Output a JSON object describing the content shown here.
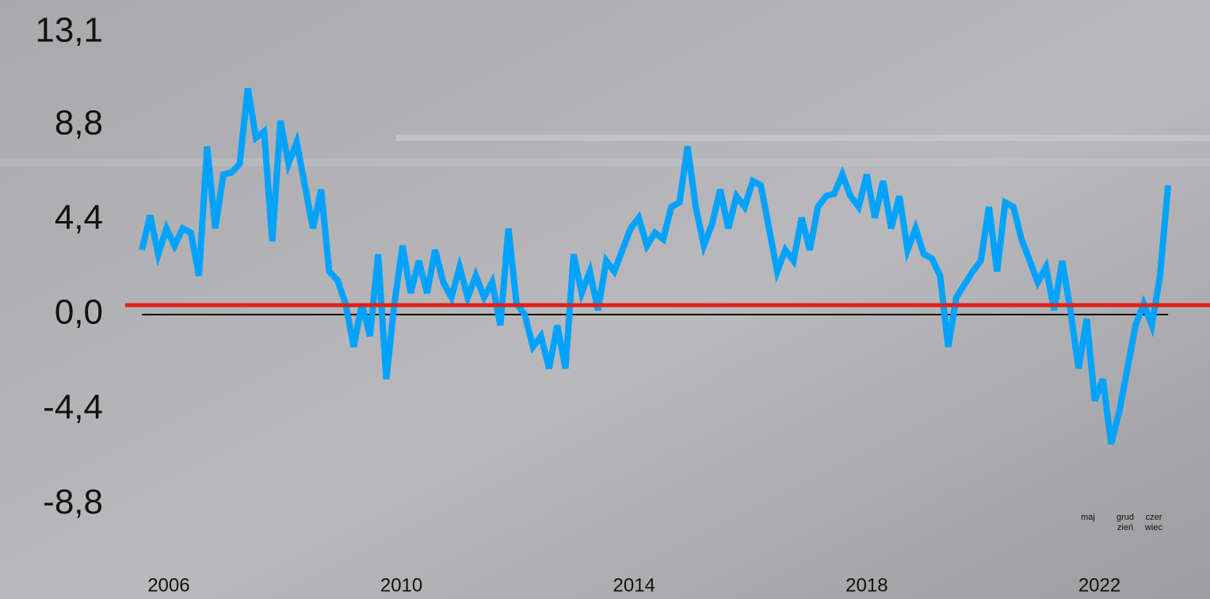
{
  "chart_data": {
    "type": "line",
    "x": [
      2005.54,
      2005.68,
      2005.82,
      2005.96,
      2006.1,
      2006.24,
      2006.38,
      2006.52,
      2006.66,
      2006.8,
      2006.94,
      2007.08,
      2007.22,
      2007.36,
      2007.5,
      2007.64,
      2007.78,
      2007.92,
      2008.06,
      2008.2,
      2008.34,
      2008.48,
      2008.62,
      2008.76,
      2008.9,
      2009.04,
      2009.18,
      2009.32,
      2009.46,
      2009.6,
      2009.74,
      2009.88,
      2010.02,
      2010.16,
      2010.3,
      2010.44,
      2010.58,
      2010.72,
      2010.86,
      2011.0,
      2011.14,
      2011.28,
      2011.42,
      2011.56,
      2011.7,
      2011.84,
      2011.98,
      2012.12,
      2012.26,
      2012.4,
      2012.54,
      2012.68,
      2012.82,
      2012.96,
      2013.1,
      2013.24,
      2013.38,
      2013.52,
      2013.66,
      2013.8,
      2013.94,
      2014.08,
      2014.22,
      2014.36,
      2014.5,
      2014.64,
      2014.78,
      2014.92,
      2015.06,
      2015.2,
      2015.34,
      2015.48,
      2015.62,
      2015.76,
      2015.9,
      2016.04,
      2016.18,
      2016.32,
      2016.46,
      2016.6,
      2016.74,
      2016.88,
      2017.02,
      2017.16,
      2017.3,
      2017.44,
      2017.58,
      2017.72,
      2017.86,
      2018.0,
      2018.14,
      2018.28,
      2018.42,
      2018.56,
      2018.7,
      2018.84,
      2018.98,
      2019.12,
      2019.26,
      2019.4,
      2019.54,
      2019.68,
      2019.82,
      2019.96,
      2020.1,
      2020.24,
      2020.38,
      2020.52,
      2020.66,
      2020.8,
      2020.94,
      2021.08,
      2021.22,
      2021.36,
      2021.5,
      2021.64,
      2021.78,
      2021.92,
      2022.06,
      2022.2,
      2022.34,
      2022.48,
      2022.62,
      2022.76,
      2022.9,
      2023.04,
      2023.18
    ],
    "series": [
      {
        "color": "#00a2ff",
        "values": [
          3.0,
          4.6,
          2.8,
          4.0,
          3.2,
          4.0,
          3.8,
          1.8,
          7.8,
          4.0,
          6.5,
          6.6,
          7.0,
          10.5,
          8.2,
          8.5,
          3.4,
          9.0,
          7.0,
          8.0,
          6.0,
          4.0,
          5.8,
          2.0,
          1.6,
          0.5,
          -1.5,
          0.5,
          -1.0,
          2.8,
          -3.0,
          0.5,
          3.2,
          1.0,
          2.5,
          1.0,
          3.0,
          1.5,
          0.8,
          2.2,
          0.8,
          1.8,
          0.8,
          1.5,
          -0.5,
          4.0,
          0.5,
          0,
          -1.5,
          -1.0,
          -2.5,
          -0.5,
          -2.5,
          2.8,
          1.0,
          2.0,
          0.2,
          2.5,
          2.0,
          3.0,
          4.0,
          4.5,
          3.2,
          3.8,
          3.5,
          5.0,
          5.2,
          7.8,
          5.0,
          3.2,
          4.2,
          5.8,
          4.0,
          5.5,
          5.0,
          6.2,
          6.0,
          4.0,
          2.0,
          3.0,
          2.5,
          4.5,
          3.0,
          5.0,
          5.5,
          5.6,
          6.5,
          5.5,
          5.0,
          6.5,
          4.5,
          6.2,
          4.0,
          5.5,
          3.0,
          4.0,
          2.8,
          2.6,
          1.8,
          -1.5,
          0.8,
          1.4,
          2.0,
          2.5,
          5.0,
          2.0,
          5.2,
          5.0,
          3.5,
          2.5,
          1.5,
          2.2,
          0.2,
          2.5,
          0.2,
          -2.5,
          -0.2,
          -4.0,
          -3.0,
          -6.0,
          -4.5,
          -2.5,
          -0.5,
          0.5,
          -0.5,
          1.8,
          6.0
        ]
      }
    ],
    "xlim": [
      2003.1,
      2023.9
    ],
    "xticks": [
      2006,
      2010,
      2014,
      2018,
      2022
    ],
    "ylim": [
      -13.2,
      14.6
    ],
    "yticks": [
      {
        "value": 13.1,
        "label": "13,1"
      },
      {
        "value": 8.8,
        "label": "8,8"
      },
      {
        "value": 4.4,
        "label": "4,4"
      },
      {
        "value": 0,
        "label": "0,0"
      },
      {
        "value": -4.4,
        "label": "-4,4"
      },
      {
        "value": -8.8,
        "label": "-8,8"
      }
    ],
    "reference_line": {
      "value": 0.44,
      "color": "#e0201c"
    },
    "month_notes": [
      [
        "maj"
      ],
      [
        "grud",
        "zień"
      ],
      [
        "czer",
        "wiec"
      ]
    ]
  }
}
